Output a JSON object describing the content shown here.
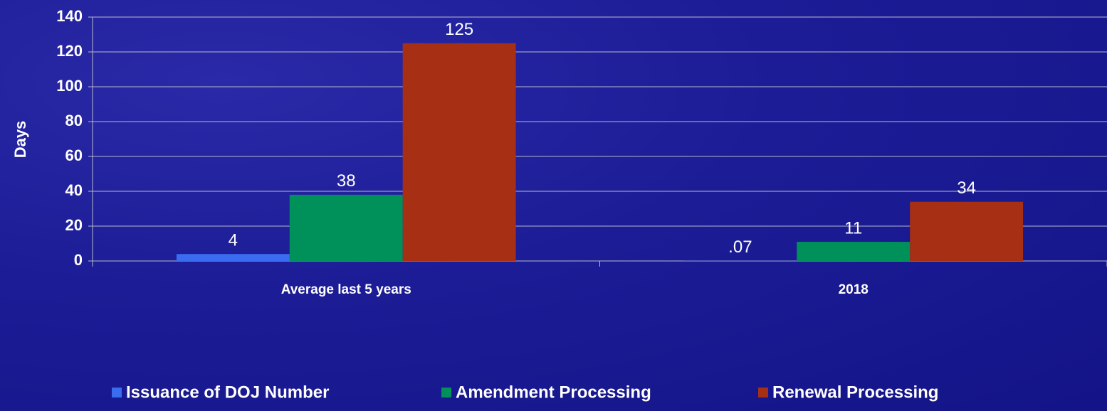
{
  "chart_data": {
    "type": "bar",
    "categories": [
      "Average last 5 years",
      "2018"
    ],
    "series": [
      {
        "name": "Issuance of DOJ Number",
        "color": "#3a6cf0",
        "values": [
          4,
          0.07
        ],
        "value_labels": [
          "4",
          ".07"
        ]
      },
      {
        "name": "Amendment Processing",
        "color": "#00905a",
        "values": [
          38,
          11
        ]
      },
      {
        "name": "Renewal Processing",
        "color": "#a62f14",
        "values": [
          125,
          34
        ]
      }
    ],
    "ylabel": "Days",
    "ylim": [
      0,
      140
    ],
    "yticks": [
      0,
      20,
      40,
      60,
      80,
      100,
      120,
      140
    ],
    "grid": true,
    "legend": "bottom"
  }
}
